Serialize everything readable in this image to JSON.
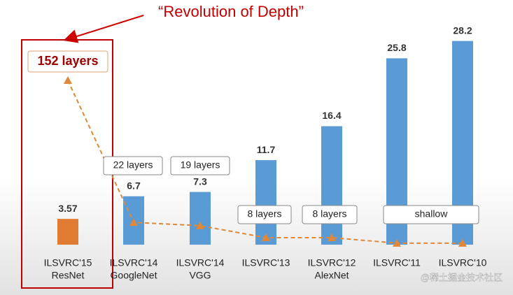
{
  "chart_data": {
    "type": "bar",
    "title": "“Revolution of Depth”",
    "categories": [
      "ILSVRC'15",
      "ILSVRC'14",
      "ILSVRC'14",
      "ILSVRC'13",
      "ILSVRC'12",
      "ILSVRC'11",
      "ILSVRC'10"
    ],
    "models": [
      "ResNet",
      "GoogleNet",
      "VGG",
      null,
      "AlexNet",
      null,
      null
    ],
    "values": [
      3.57,
      6.7,
      7.3,
      11.7,
      16.4,
      25.8,
      28.2
    ],
    "colors": [
      "#e07b32",
      "#5b9bd5",
      "#5b9bd5",
      "#5b9bd5",
      "#5b9bd5",
      "#5b9bd5",
      "#5b9bd5"
    ],
    "ylim": [
      0,
      30
    ],
    "layers": {
      "values": [
        152,
        22,
        19,
        8,
        8,
        3,
        3
      ],
      "value_labels": [
        "152 layers",
        "22 layers",
        "19 layers",
        "8 layers",
        "8 layers",
        null,
        null
      ],
      "color": "#e0883a",
      "axis": "y2"
    },
    "y2lim": [
      0,
      200
    ],
    "shallow_label": "shallow",
    "watermark": "@稀土掘金技术社区"
  }
}
